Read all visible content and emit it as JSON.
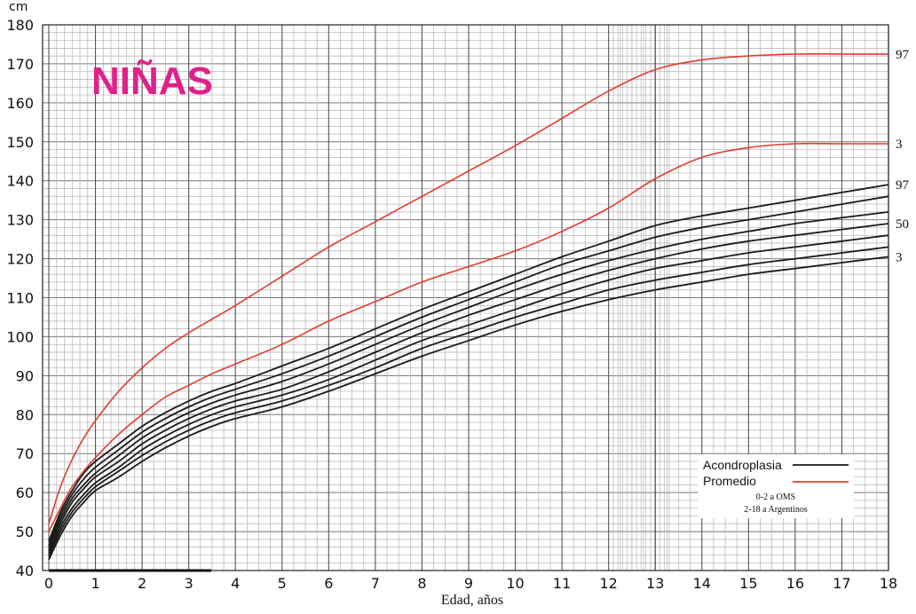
{
  "chart_data": {
    "type": "line",
    "title": "NIÑAS",
    "xlabel": "Edad, años",
    "ylabel": "cm",
    "xlim": [
      0,
      18
    ],
    "ylim": [
      40,
      180
    ],
    "x_ticks": [
      "0",
      "1",
      "2",
      "3",
      "4",
      "5",
      "6",
      "7",
      "8",
      "9",
      "10",
      "11",
      "12",
      "13",
      "14",
      "15",
      "16",
      "17",
      "18"
    ],
    "y_ticks": [
      "40",
      "50",
      "60",
      "70",
      "80",
      "90",
      "100",
      "110",
      "120",
      "130",
      "140",
      "150",
      "160",
      "170",
      "180"
    ],
    "grid": true,
    "colors": {
      "acondroplasia": "#1a1a1a",
      "promedio": "#e23b2e",
      "title": "#e0218a"
    },
    "legend": {
      "position": "bottom-right",
      "entries": [
        {
          "label": "Acondroplasia",
          "color": "#1a1a1a"
        },
        {
          "label": "Promedio",
          "color": "#e23b2e"
        }
      ],
      "notes": [
        "0-2 a OMS",
        "2-18 a Argentinos"
      ]
    },
    "x": [
      0,
      0.25,
      0.5,
      0.75,
      1,
      1.5,
      2,
      2.5,
      3,
      3.5,
      4,
      5,
      6,
      7,
      8,
      9,
      10,
      11,
      12,
      13,
      14,
      15,
      16,
      17,
      18
    ],
    "series": [
      {
        "group": "Acondroplasia",
        "label": "97",
        "values": [
          47.5,
          55,
          60.5,
          65,
          68,
          72.5,
          77,
          80.5,
          83.5,
          86,
          88,
          92.5,
          97,
          102,
          107,
          111.5,
          116,
          120.5,
          124.5,
          128.5,
          131,
          133,
          135,
          137,
          139
        ]
      },
      {
        "group": "Acondroplasia",
        "label": "",
        "values": [
          46.5,
          54,
          59.5,
          63.5,
          66.5,
          71,
          75.5,
          79,
          82,
          84.5,
          86.5,
          90.5,
          95,
          100,
          105,
          109.5,
          114,
          118.5,
          122,
          125.5,
          128,
          130,
          132,
          134,
          136
        ]
      },
      {
        "group": "Acondroplasia",
        "label": "",
        "values": [
          45.8,
          53,
          58.5,
          62,
          65,
          69.5,
          74,
          77.5,
          80.5,
          83,
          85,
          88.5,
          93,
          98,
          103,
          107.5,
          112,
          116,
          119.5,
          122.5,
          125,
          127,
          129,
          130.5,
          132
        ]
      },
      {
        "group": "Acondroplasia",
        "label": "50",
        "values": [
          45,
          52,
          57.5,
          61,
          64,
          68,
          72.5,
          76,
          79,
          81.5,
          83.5,
          86.5,
          91,
          96,
          101,
          105.5,
          109.5,
          113.5,
          117,
          120,
          122.5,
          124.5,
          126,
          127.5,
          129
        ]
      },
      {
        "group": "Acondroplasia",
        "label": "",
        "values": [
          44.3,
          51,
          56,
          59.5,
          62.5,
          66.5,
          71,
          74.5,
          77.5,
          80,
          82,
          85,
          89,
          94,
          99,
          103,
          107,
          111,
          114.5,
          117.5,
          119.5,
          121.5,
          123,
          124.5,
          126
        ]
      },
      {
        "group": "Acondroplasia",
        "label": "",
        "values": [
          43.6,
          50,
          55,
          58.5,
          61.5,
          65.5,
          69.5,
          73,
          76,
          78.5,
          80.5,
          83.5,
          87.5,
          92,
          97,
          101,
          105,
          108.5,
          112,
          114.5,
          116.5,
          118.5,
          120,
          121.5,
          123
        ]
      },
      {
        "group": "Acondroplasia",
        "label": "3",
        "values": [
          42.8,
          49,
          54,
          57.5,
          60.5,
          64,
          68,
          71.5,
          74.5,
          77,
          79,
          82,
          86,
          90.5,
          95,
          99,
          103,
          106.5,
          109.5,
          112,
          114,
          116,
          117.5,
          119,
          120.5
        ]
      },
      {
        "group": "Promedio",
        "label": "97",
        "values": [
          52,
          61.5,
          68.5,
          74,
          78.5,
          86,
          92,
          97,
          101,
          104.5,
          108,
          115.5,
          123,
          129.5,
          136,
          142.5,
          149,
          156,
          163,
          168.5,
          171,
          172,
          172.5,
          172.5,
          172.5
        ]
      },
      {
        "group": "Promedio",
        "label": "3",
        "values": [
          50,
          56,
          61.5,
          65.5,
          69,
          75,
          80,
          84.5,
          87.5,
          90.5,
          93,
          98,
          104,
          109,
          114,
          118,
          122,
          127,
          133,
          140.5,
          146,
          148.5,
          149.5,
          149.5,
          149.5
        ]
      }
    ]
  }
}
